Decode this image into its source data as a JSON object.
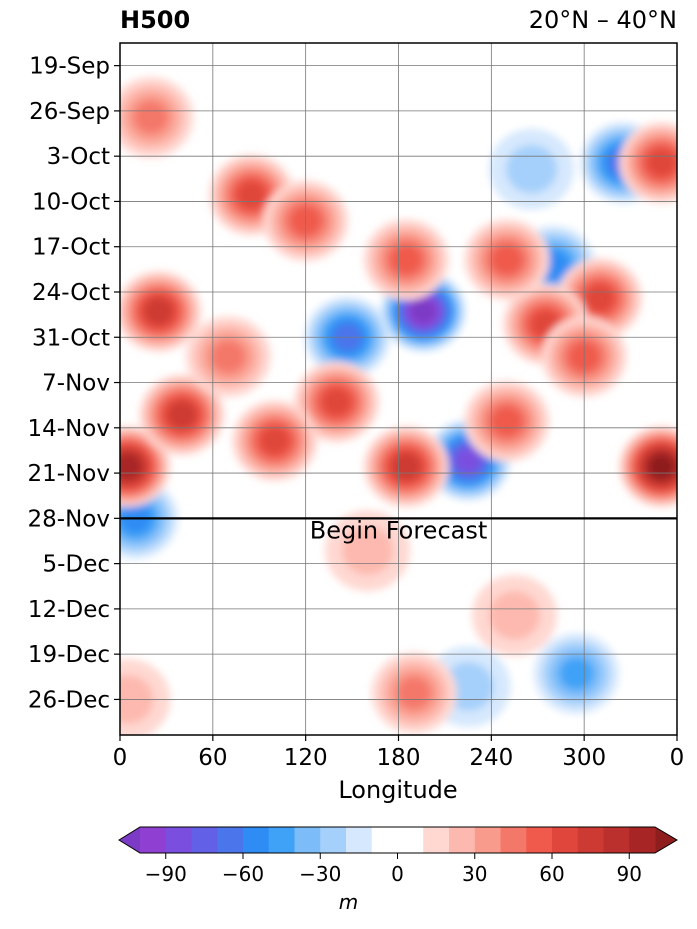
{
  "chart_data": {
    "type": "heatmap",
    "title_left": "H500",
    "title_right": "20°N – 40°N",
    "xlabel": "Longitude",
    "x_ticks": [
      "0",
      "60",
      "120",
      "180",
      "240",
      "300",
      "0"
    ],
    "x_tick_values": [
      0,
      60,
      120,
      180,
      240,
      300,
      360
    ],
    "xlim": [
      0,
      360
    ],
    "y_ticks": [
      "19-Sep",
      "26-Sep",
      "3-Oct",
      "10-Oct",
      "17-Oct",
      "24-Oct",
      "31-Oct",
      "7-Nov",
      "14-Nov",
      "21-Nov",
      "28-Nov",
      "5-Dec",
      "12-Dec",
      "19-Dec",
      "26-Dec"
    ],
    "y_range_days": [
      -3.5,
      103.5
    ],
    "forecast_label": "Begin Forecast",
    "forecast_day": 70,
    "grid": true,
    "colorbar": {
      "label": "m",
      "ticks": [
        "−90",
        "−60",
        "−30",
        "0",
        "30",
        "60",
        "90"
      ],
      "tick_values": [
        -90,
        -60,
        -30,
        0,
        30,
        60,
        90
      ],
      "levels": [
        -100,
        -90,
        -80,
        -70,
        -60,
        -50,
        -40,
        -30,
        -20,
        -10,
        10,
        20,
        30,
        40,
        50,
        60,
        70,
        80,
        90,
        100
      ],
      "colors": [
        "#8f3fd1",
        "#7a4fe0",
        "#6160e6",
        "#4b75ea",
        "#2f8cf4",
        "#3fa2f7",
        "#7cbcf9",
        "#a5d0fb",
        "#d6e8fd",
        "#ffffff",
        "#ffd8d2",
        "#fdb9af",
        "#f99b8c",
        "#f4786a",
        "#ef5a4c",
        "#e0463b",
        "#cd3a33",
        "#bb2f2c",
        "#a82526"
      ],
      "under_color": "#7c3bc5",
      "over_color": "#8e1e1e"
    },
    "anomalies": [
      {
        "lon": 196,
        "day": 38,
        "value": -95
      },
      {
        "lon": 225,
        "day": 61,
        "value": -80
      },
      {
        "lon": 147,
        "day": 42,
        "value": -55
      },
      {
        "lon": 10,
        "day": 70,
        "value": -45
      },
      {
        "lon": 325,
        "day": 15,
        "value": -55
      },
      {
        "lon": 280,
        "day": 31,
        "value": -45
      },
      {
        "lon": 266,
        "day": 16,
        "value": -18
      },
      {
        "lon": 295,
        "day": 94,
        "value": -40
      },
      {
        "lon": 225,
        "day": 96,
        "value": -20
      },
      {
        "lon": 350,
        "day": 62,
        "value": 95
      },
      {
        "lon": 5,
        "day": 62,
        "value": 85
      },
      {
        "lon": 25,
        "day": 38,
        "value": 70
      },
      {
        "lon": 40,
        "day": 54,
        "value": 65
      },
      {
        "lon": 85,
        "day": 20,
        "value": 55
      },
      {
        "lon": 350,
        "day": 15,
        "value": 60
      },
      {
        "lon": 310,
        "day": 36,
        "value": 55
      },
      {
        "lon": 275,
        "day": 40,
        "value": 60
      },
      {
        "lon": 185,
        "day": 62,
        "value": 70
      },
      {
        "lon": 140,
        "day": 52,
        "value": 55
      },
      {
        "lon": 120,
        "day": 24,
        "value": 45
      },
      {
        "lon": 185,
        "day": 30,
        "value": 50
      },
      {
        "lon": 250,
        "day": 55,
        "value": 50
      },
      {
        "lon": 300,
        "day": 45,
        "value": 45
      },
      {
        "lon": 100,
        "day": 58,
        "value": 55
      },
      {
        "lon": 20,
        "day": 8,
        "value": 40
      },
      {
        "lon": 70,
        "day": 45,
        "value": 40
      },
      {
        "lon": 250,
        "day": 30,
        "value": 45
      },
      {
        "lon": 190,
        "day": 97,
        "value": 35
      },
      {
        "lon": 160,
        "day": 75,
        "value": 20
      },
      {
        "lon": 255,
        "day": 85,
        "value": 15
      },
      {
        "lon": 5,
        "day": 98,
        "value": 15
      }
    ]
  }
}
